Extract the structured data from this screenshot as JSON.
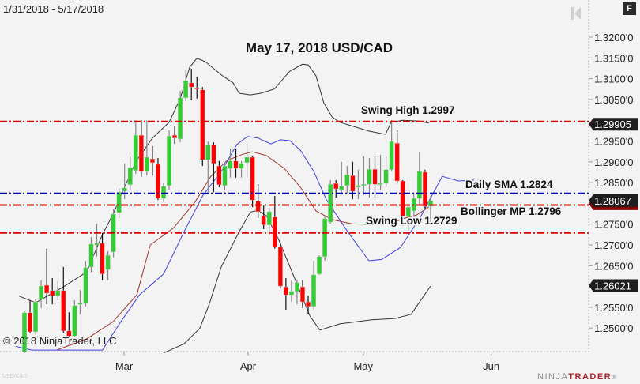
{
  "header": {
    "date_range": "1/31/2018 - 5/17/2018",
    "f_button": "F"
  },
  "footer": {
    "copyright": "© 2018 NinjaTrader, LLC",
    "symbol": "USD/CAD",
    "logo_prefix": "NINJA",
    "logo_suffix": "TRADER",
    "logo_mark": "®"
  },
  "chart_data": {
    "type": "candlestick",
    "title": "May 17, 2018 USD/CAD",
    "ylim": [
      1.2443,
      1.3272
    ],
    "y_ticks": [
      "1.3200'0",
      "1.3150'0",
      "1.3100'0",
      "1.3050'0",
      "1.2950'0",
      "1.2900'0",
      "1.2850'0",
      "1.2750'0",
      "1.2700'0",
      "1.2650'0",
      "1.2550'0",
      "1.2500'0"
    ],
    "y_tick_values": [
      1.32,
      1.315,
      1.31,
      1.305,
      1.295,
      1.29,
      1.285,
      1.275,
      1.27,
      1.265,
      1.255,
      1.25
    ],
    "x_ticks": [
      {
        "label": "Mar",
        "bar": 18.9
      },
      {
        "label": "Apr",
        "bar": 41.2
      },
      {
        "label": "May",
        "bar": 61.9
      },
      {
        "label": "Jun",
        "bar": 84.9
      }
    ],
    "colors": {
      "up": "#32cd32",
      "down": "#ff0000",
      "upper_band": "#333333",
      "lower_band": "#333333",
      "middle": "#a0322d",
      "sma": "#4040e0"
    },
    "candles_ohlc": [
      [
        1.2443,
        1.2542,
        1.244,
        1.2537
      ],
      [
        1.2537,
        1.2567,
        1.2487,
        1.2491
      ],
      [
        1.2491,
        1.2571,
        1.2483,
        1.2563
      ],
      [
        1.2569,
        1.2615,
        1.2548,
        1.2601
      ],
      [
        1.2603,
        1.2691,
        1.2557,
        1.2584
      ],
      [
        1.259,
        1.262,
        1.2557,
        1.2578
      ],
      [
        1.2578,
        1.2613,
        1.2567,
        1.259
      ],
      [
        1.259,
        1.2647,
        1.2489,
        1.2493
      ],
      [
        1.2493,
        1.2538,
        1.2478,
        1.2481
      ],
      [
        1.2481,
        1.2567,
        1.2478,
        1.2554
      ],
      [
        1.2559,
        1.2592,
        1.2533,
        1.256
      ],
      [
        1.2559,
        1.2662,
        1.2552,
        1.2645
      ],
      [
        1.2647,
        1.2719,
        1.2634,
        1.2702
      ],
      [
        1.27,
        1.2751,
        1.2672,
        1.2704
      ],
      [
        1.2704,
        1.2729,
        1.2615,
        1.263
      ],
      [
        1.2641,
        1.2685,
        1.2615,
        1.2675
      ],
      [
        1.2683,
        1.2786,
        1.267,
        1.2774
      ],
      [
        1.2778,
        1.2837,
        1.2765,
        1.2827
      ],
      [
        1.2829,
        1.2896,
        1.281,
        1.2837
      ],
      [
        1.2845,
        1.2913,
        1.2833,
        1.2886
      ],
      [
        1.2879,
        1.3,
        1.2871,
        1.2964
      ],
      [
        1.2964,
        1.3,
        1.2864,
        1.2877
      ],
      [
        1.2877,
        1.3,
        1.2867,
        1.2911
      ],
      [
        1.2907,
        1.2938,
        1.2867,
        1.2898
      ],
      [
        1.2894,
        1.2909,
        1.2808,
        1.2812
      ],
      [
        1.2812,
        1.2848,
        1.2803,
        1.2841
      ],
      [
        1.2843,
        1.2976,
        1.2833,
        1.2962
      ],
      [
        1.2964,
        1.2985,
        1.2943,
        1.2957
      ],
      [
        1.2955,
        1.3071,
        1.2947,
        1.3054
      ],
      [
        1.3054,
        1.3122,
        1.3046,
        1.3095
      ],
      [
        1.309,
        1.3124,
        1.3048,
        1.308
      ],
      [
        1.3078,
        1.3105,
        1.3052,
        1.3075
      ],
      [
        1.3073,
        1.308,
        1.289,
        1.2905
      ],
      [
        1.2905,
        1.2949,
        1.2827,
        1.294
      ],
      [
        1.294,
        1.2947,
        1.2827,
        1.2896
      ],
      [
        1.289,
        1.2902,
        1.2839,
        1.2845
      ],
      [
        1.2843,
        1.29,
        1.2833,
        1.289
      ],
      [
        1.2884,
        1.2932,
        1.2862,
        1.2902
      ],
      [
        1.2902,
        1.2932,
        1.2862,
        1.2884
      ],
      [
        1.2884,
        1.2902,
        1.2862,
        1.2896
      ],
      [
        1.2898,
        1.2943,
        1.2862,
        1.2911
      ],
      [
        1.2911,
        1.2913,
        1.2791,
        1.2808
      ],
      [
        1.2805,
        1.2846,
        1.2765,
        1.278
      ],
      [
        1.277,
        1.2795,
        1.2738,
        1.2748
      ],
      [
        1.2748,
        1.2789,
        1.2723,
        1.278
      ],
      [
        1.2767,
        1.2818,
        1.2691,
        1.2696
      ],
      [
        1.2696,
        1.2705,
        1.2595,
        1.2601
      ],
      [
        1.2599,
        1.262,
        1.2544,
        1.258
      ],
      [
        1.258,
        1.2615,
        1.2563,
        1.2588
      ],
      [
        1.2588,
        1.2616,
        1.2557,
        1.2609
      ],
      [
        1.2599,
        1.2615,
        1.2548,
        1.2563
      ],
      [
        1.2563,
        1.2578,
        1.2533,
        1.2552
      ],
      [
        1.2552,
        1.2662,
        1.2544,
        1.2628
      ],
      [
        1.263,
        1.2675,
        1.2628,
        1.2672
      ],
      [
        1.2672,
        1.2768,
        1.2662,
        1.2763
      ],
      [
        1.2755,
        1.2856,
        1.2751,
        1.2846
      ],
      [
        1.2848,
        1.2856,
        1.2814,
        1.2835
      ],
      [
        1.2833,
        1.29,
        1.2824,
        1.2841
      ],
      [
        1.2843,
        1.289,
        1.2824,
        1.2869
      ],
      [
        1.2867,
        1.29,
        1.281,
        1.2829
      ],
      [
        1.2839,
        1.2881,
        1.281,
        1.2843
      ],
      [
        1.2845,
        1.2913,
        1.282,
        1.2846
      ],
      [
        1.2846,
        1.2909,
        1.2814,
        1.2882
      ],
      [
        1.2882,
        1.2913,
        1.2814,
        1.2846
      ],
      [
        1.2846,
        1.2917,
        1.2833,
        1.2848
      ],
      [
        1.2848,
        1.2913,
        1.2839,
        1.2881
      ],
      [
        1.2881,
        1.3,
        1.2877,
        1.2949
      ],
      [
        1.2945,
        1.2976,
        1.2848,
        1.2854
      ],
      [
        1.2854,
        1.2856,
        1.2746,
        1.2768
      ],
      [
        1.2768,
        1.2799,
        1.2734,
        1.2791
      ],
      [
        1.2782,
        1.2824,
        1.2767,
        1.2812
      ],
      [
        1.2812,
        1.2924,
        1.2795,
        1.2877
      ],
      [
        1.2875,
        1.2881,
        1.2786,
        1.2793
      ],
      [
        1.2793,
        1.2818,
        1.2749,
        1.2806
      ]
    ],
    "upper_band": [
      [
        0,
        1.2577
      ],
      [
        3,
        1.2561
      ],
      [
        8,
        1.2599
      ],
      [
        12.2,
        1.2635
      ],
      [
        15,
        1.2725
      ],
      [
        17,
        1.2776
      ],
      [
        19,
        1.2839
      ],
      [
        21,
        1.29
      ],
      [
        24,
        1.2957
      ],
      [
        27,
        1.2995
      ],
      [
        29,
        1.3052
      ],
      [
        30.7,
        1.3128
      ],
      [
        32,
        1.3149
      ],
      [
        33.5,
        1.3141
      ],
      [
        36.4,
        1.3109
      ],
      [
        38.5,
        1.309
      ],
      [
        39.6,
        1.3065
      ],
      [
        41.6,
        1.3061
      ],
      [
        43.5,
        1.3065
      ],
      [
        45.9,
        1.3075
      ],
      [
        48.7,
        1.3118
      ],
      [
        51,
        1.3135
      ],
      [
        52,
        1.3133
      ],
      [
        53.4,
        1.3107
      ],
      [
        54.8,
        1.3042
      ],
      [
        56.3,
        1.3008
      ],
      [
        57.7,
        1.2995
      ],
      [
        62.9,
        1.2974
      ],
      [
        65.9,
        1.2966
      ],
      [
        66.9,
        1.2995
      ],
      [
        69,
        1.3
      ],
      [
        71.9,
        1.2998
      ],
      [
        73.7,
        1.2993
      ]
    ],
    "lower_band": [
      [
        26,
        1.244
      ],
      [
        29.7,
        1.2462
      ],
      [
        32.5,
        1.2499
      ],
      [
        34.2,
        1.2557
      ],
      [
        36.4,
        1.2648
      ],
      [
        39.6,
        1.2732
      ],
      [
        41.6,
        1.2779
      ],
      [
        43,
        1.2783
      ],
      [
        44.5,
        1.277
      ],
      [
        46.7,
        1.2713
      ],
      [
        48.7,
        1.2648
      ],
      [
        50.6,
        1.2586
      ],
      [
        52.3,
        1.2529
      ],
      [
        54.1,
        1.2495
      ],
      [
        57.7,
        1.251
      ],
      [
        63.4,
        1.252
      ],
      [
        67.6,
        1.2523
      ],
      [
        70.5,
        1.2533
      ],
      [
        74,
        1.2601
      ]
    ],
    "middle_band": [
      [
        6.8,
        1.2447
      ],
      [
        12.2,
        1.2474
      ],
      [
        16.9,
        1.2515
      ],
      [
        21.2,
        1.258
      ],
      [
        23.6,
        1.27
      ],
      [
        27.8,
        1.2741
      ],
      [
        31.7,
        1.2804
      ],
      [
        34.5,
        1.2865
      ],
      [
        37.4,
        1.2903
      ],
      [
        40.2,
        1.2918
      ],
      [
        42,
        1.2924
      ],
      [
        44.5,
        1.2915
      ],
      [
        47.7,
        1.2884
      ],
      [
        50.6,
        1.2839
      ],
      [
        53.4,
        1.2782
      ],
      [
        56.3,
        1.2761
      ],
      [
        59.8,
        1.2751
      ],
      [
        66.2,
        1.2748
      ],
      [
        69,
        1.2763
      ],
      [
        71.5,
        1.2772
      ],
      [
        73.7,
        1.2791
      ]
    ],
    "sma_line": [
      [
        -0.6,
        1.2456
      ],
      [
        2.3,
        1.2447
      ],
      [
        15,
        1.2447
      ],
      [
        18.3,
        1.2515
      ],
      [
        21.7,
        1.258
      ],
      [
        26,
        1.263
      ],
      [
        29.7,
        1.2732
      ],
      [
        33.1,
        1.282
      ],
      [
        36.4,
        1.2877
      ],
      [
        39.2,
        1.2942
      ],
      [
        41.1,
        1.2961
      ],
      [
        43,
        1.2957
      ],
      [
        45.3,
        1.2943
      ],
      [
        47,
        1.2953
      ],
      [
        48.7,
        1.2951
      ],
      [
        50.6,
        1.2928
      ],
      [
        53,
        1.2877
      ],
      [
        55.3,
        1.2808
      ],
      [
        59.1,
        1.2732
      ],
      [
        62.9,
        1.2662
      ],
      [
        65.2,
        1.2665
      ],
      [
        68.6,
        1.2694
      ],
      [
        72.3,
        1.277
      ],
      [
        74.3,
        1.282
      ],
      [
        76.1,
        1.2865
      ],
      [
        79,
        1.2854
      ],
      [
        81.8,
        1.2856
      ]
    ],
    "levels": [
      {
        "label": "Swing High 1.2997",
        "price": 1.2997,
        "color": "#e00000"
      },
      {
        "label": "Daily SMA 1.2824",
        "price": 1.2824,
        "color": "#0000c0"
      },
      {
        "label": "Bollinger MP 1.2796",
        "price": 1.2796,
        "color": "#e00000"
      },
      {
        "label": "Swing Low 1.2729",
        "price": 1.2729,
        "color": "#e00000"
      }
    ],
    "price_tags": [
      {
        "label": "1.29905",
        "price": 1.29905,
        "color": "#1e1e1e"
      },
      {
        "label": "1.28067",
        "price": 1.28067,
        "color": "#1e1e1e"
      },
      {
        "label": "1.26021",
        "price": 1.26021,
        "color": "#1e1e1e"
      }
    ]
  }
}
